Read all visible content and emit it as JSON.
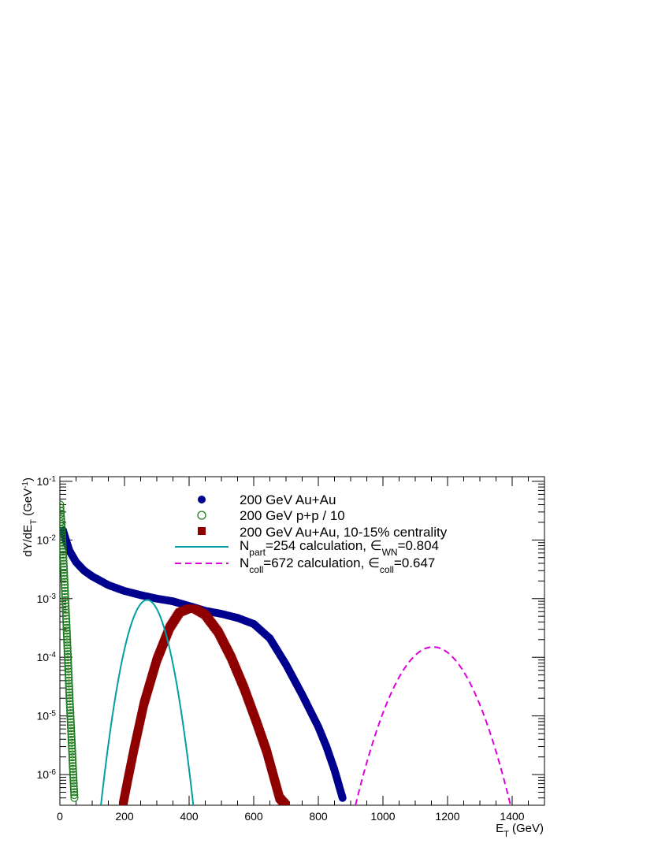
{
  "chart_data": {
    "type": "scatter",
    "title": "",
    "x_axis": {
      "label_main": "E",
      "label_sub": "T",
      "label_unit": " (GeV)",
      "range": [
        0,
        1500
      ],
      "ticks": [
        0,
        200,
        400,
        600,
        800,
        1000,
        1200,
        1400
      ],
      "tick_labels": [
        "0",
        "200",
        "400",
        "600",
        "800",
        "1000",
        "1200",
        "1400"
      ]
    },
    "y_axis": {
      "label_main": "dY/dE",
      "label_sub": "T",
      "label_unit": " (GeV",
      "label_sup": "-1",
      "label_close": ")",
      "scale": "log",
      "range": [
        3e-07,
        0.12
      ],
      "ticks": [
        1e-06,
        1e-05,
        0.0001,
        0.001,
        0.01,
        0.1
      ],
      "tick_labels": [
        {
          "base": "10",
          "exp": "-6"
        },
        {
          "base": "10",
          "exp": "-5"
        },
        {
          "base": "10",
          "exp": "-4"
        },
        {
          "base": "10",
          "exp": "-3"
        },
        {
          "base": "10",
          "exp": "-2"
        },
        {
          "base": "10",
          "exp": "-1"
        }
      ]
    },
    "grid": false,
    "legend_position": "top-center",
    "series": [
      {
        "name": "200 GeV Au+Au",
        "marker": "filled-circle",
        "color": "#00008f",
        "x": [
          10,
          20,
          30,
          50,
          75,
          100,
          150,
          200,
          250,
          300,
          350,
          400,
          450,
          500,
          550,
          600,
          650,
          700,
          750,
          800,
          825,
          850,
          875
        ],
        "y": [
          0.0145,
          0.0095,
          0.0065,
          0.0042,
          0.003,
          0.0024,
          0.0017,
          0.00135,
          0.00115,
          0.001,
          0.0009,
          0.00075,
          0.00062,
          0.00055,
          0.00047,
          0.00037,
          0.00021,
          7.5e-05,
          2.3e-05,
          6.5e-06,
          3e-06,
          1.2e-06,
          4e-07
        ]
      },
      {
        "name": "200 GeV p+p / 10",
        "marker": "open-circle",
        "color": "#1a7a1a",
        "x": [
          1,
          3,
          5,
          8,
          12,
          16,
          20,
          25,
          30,
          35,
          40,
          45
        ],
        "y": [
          0.04,
          0.025,
          0.017,
          0.009,
          0.0035,
          0.0012,
          0.0004,
          9e-05,
          2e-05,
          5.5e-06,
          1.4e-06,
          4e-07
        ]
      },
      {
        "name": "200 GeV Au+Au, 10-15% centrality",
        "marker": "filled-square",
        "color": "#8f0000",
        "x": [
          195,
          210,
          230,
          260,
          300,
          340,
          370,
          400,
          420,
          450,
          490,
          530,
          570,
          610,
          640,
          660,
          680,
          700
        ],
        "y": [
          3e-07,
          8e-07,
          2.8e-06,
          1.6e-05,
          9e-05,
          0.00032,
          0.00058,
          0.00068,
          0.00066,
          0.00053,
          0.00027,
          0.0001,
          3e-05,
          7.5e-06,
          2.5e-06,
          1e-06,
          4e-07,
          3e-07
        ]
      },
      {
        "name": "N_part=254 calculation, ε_WN=0.804",
        "line": "solid",
        "color": "#00a0a0",
        "curve": {
          "peak_x": 270,
          "peak_y": 0.00095,
          "end_x": 413,
          "end_y": 3e-07
        }
      },
      {
        "name": "N_coll=672 calculation, ε_coll=0.647",
        "line": "dashed",
        "color": "#dd00dd",
        "curve": {
          "peak_x": 1155,
          "peak_y": 0.00015,
          "end_x": 1395,
          "end_y": 3e-07
        }
      }
    ]
  },
  "legend": [
    {
      "text_before": "200 GeV Au+Au"
    },
    {
      "text_before": "200 GeV p+p / 10"
    },
    {
      "text_before": "200 GeV Au+Au, 10-15% centrality"
    },
    {
      "text_before": "N",
      "sub1": "part",
      "text_mid": "=254 calculation, ",
      "symbol": "∈",
      "sub2": "WN",
      "text_after": "=0.804"
    },
    {
      "text_before": "N",
      "sub1": "coll",
      "text_mid": "=672 calculation, ",
      "symbol": "∈",
      "sub2": "coll",
      "text_after": "=0.647"
    }
  ]
}
